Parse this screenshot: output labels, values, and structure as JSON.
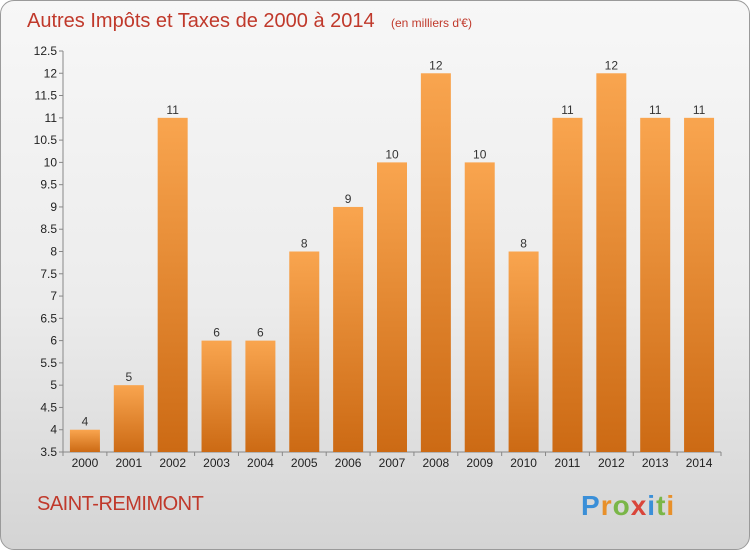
{
  "title": "Autres Impôts et Taxes de 2000 à 2014",
  "unit_note": "(en milliers d'€)",
  "commune": "SAINT-REMIMONT",
  "logo": {
    "text": "Proxiti",
    "letters": [
      "P",
      "r",
      "o",
      "x",
      "i",
      "t",
      "i"
    ],
    "letter_colors": [
      "#3a8fd8",
      "#e8902a",
      "#7ab648",
      "#d9453a",
      "#3a8fd8",
      "#7ab648",
      "#e8902a"
    ]
  },
  "chart_data": {
    "type": "bar",
    "categories": [
      "2000",
      "2001",
      "2002",
      "2003",
      "2004",
      "2005",
      "2006",
      "2007",
      "2008",
      "2009",
      "2010",
      "2011",
      "2012",
      "2013",
      "2014"
    ],
    "values": [
      4,
      5,
      11,
      6,
      6,
      8,
      9,
      10,
      12,
      10,
      8,
      11,
      12,
      11,
      11
    ],
    "data_labels": [
      "4",
      "5",
      "11",
      "6",
      "6",
      "8",
      "9",
      "10",
      "12",
      "10",
      "8",
      "11",
      "12",
      "11",
      "11"
    ],
    "ylim": [
      3.5,
      12.5
    ],
    "yticks": [
      "3.5",
      "4",
      "4.5",
      "5",
      "5.5",
      "6",
      "6.5",
      "7",
      "7.5",
      "8",
      "8.5",
      "9",
      "9.5",
      "10",
      "10.5",
      "11",
      "11.5",
      "12",
      "12.5"
    ],
    "grid": false,
    "colors": {
      "bar_light": "#f9a54f",
      "bar_dark": "#cc6a14",
      "axis": "#888888"
    }
  }
}
